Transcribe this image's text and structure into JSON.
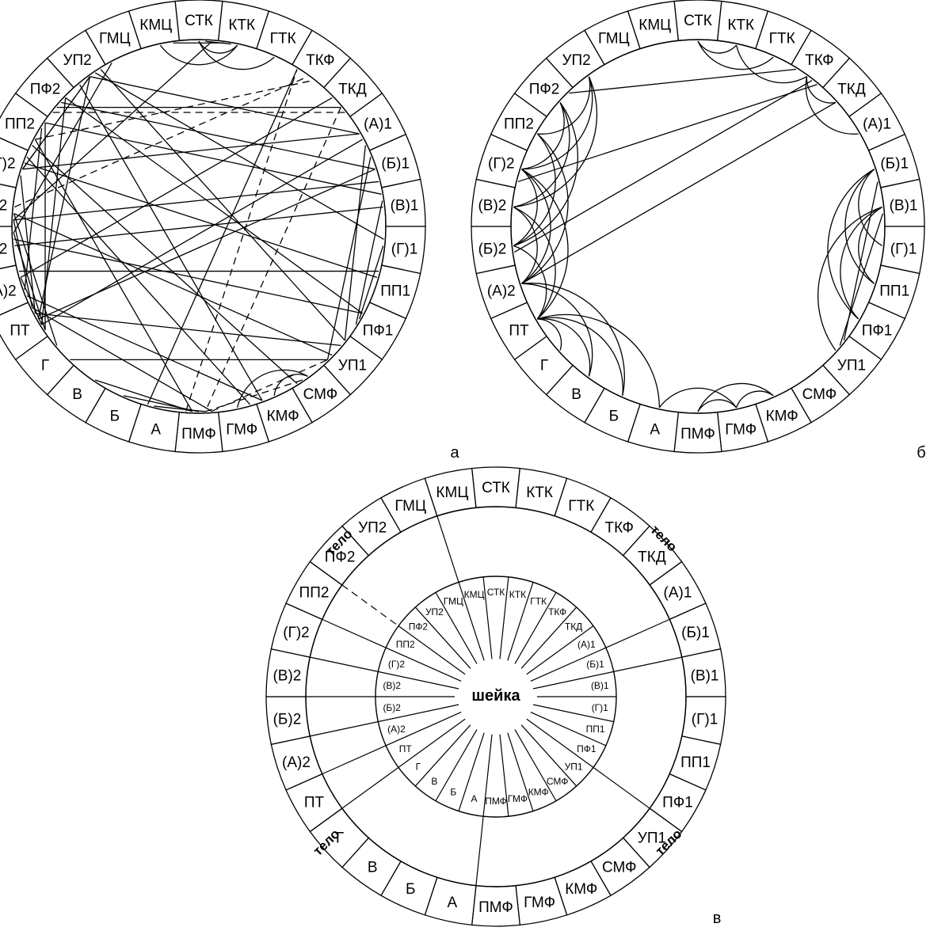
{
  "figure": {
    "segment_labels": [
      "СТК",
      "КТК",
      "ГТК",
      "ТКФ",
      "ТКД",
      "(А)1",
      "(Б)1",
      "(В)1",
      "(Г)1",
      "ПП1",
      "ПФ1",
      "УП1",
      "СМФ",
      "КМФ",
      "ГМФ",
      "ПМФ",
      "А",
      "Б",
      "В",
      "Г",
      "ПТ",
      "(А)2",
      "(Б)2",
      "(В)2",
      "(Г)2",
      "ПП2",
      "ПФ2",
      "УП2",
      "ГМЦ",
      "КМЦ"
    ],
    "panels": [
      {
        "id": "a",
        "label": "а",
        "chords": [
          [
            20,
            25
          ],
          [
            20,
            26
          ],
          [
            20,
            27
          ],
          [
            20,
            24
          ],
          [
            20,
            23
          ],
          [
            20,
            22
          ],
          [
            20,
            21
          ],
          [
            27,
            5
          ],
          [
            27,
            8
          ],
          [
            27,
            11
          ],
          [
            27,
            13
          ],
          [
            26,
            4
          ],
          [
            26,
            6
          ],
          [
            26,
            10
          ],
          [
            25,
            7
          ],
          [
            25,
            12
          ],
          [
            25,
            15
          ],
          [
            24,
            5
          ],
          [
            24,
            9
          ],
          [
            24,
            14
          ],
          [
            23,
            6
          ],
          [
            23,
            11
          ],
          [
            22,
            7
          ],
          [
            22,
            10
          ],
          [
            21,
            9
          ],
          [
            21,
            13
          ],
          [
            20,
            5
          ],
          [
            20,
            6
          ],
          [
            20,
            11
          ],
          [
            20,
            15
          ],
          [
            19,
            11
          ],
          [
            18,
            15
          ],
          [
            17,
            15
          ],
          [
            16,
            15
          ],
          [
            22,
            28
          ],
          [
            23,
            0
          ],
          [
            21,
            25
          ],
          [
            24,
            27
          ],
          [
            19,
            23
          ],
          [
            5,
            11
          ],
          [
            6,
            11
          ],
          [
            7,
            10
          ],
          [
            8,
            10
          ],
          [
            0,
            1
          ],
          [
            29,
            1
          ],
          [
            3,
            16
          ],
          [
            4,
            21
          ]
        ],
        "dashed_chords": [
          [
            26,
            4
          ],
          [
            25,
            3
          ],
          [
            23,
            3
          ],
          [
            4,
            15
          ],
          [
            15,
            3
          ],
          [
            15,
            11
          ],
          [
            15,
            12
          ],
          [
            24,
            27
          ]
        ],
        "arcs": [
          [
            0,
            1
          ],
          [
            29,
            1
          ],
          [
            0,
            2
          ],
          [
            12,
            13
          ],
          [
            12,
            14
          ]
        ]
      },
      {
        "id": "b",
        "label": "б",
        "chords": [
          [
            24,
            3
          ],
          [
            22,
            3
          ],
          [
            21,
            4
          ],
          [
            7,
            11
          ],
          [
            6,
            11
          ],
          [
            3,
            26
          ]
        ],
        "dashed_chords": [],
        "arcs": [
          [
            0,
            2
          ],
          [
            0,
            1
          ],
          [
            1,
            3
          ],
          [
            3,
            4
          ],
          [
            3,
            5
          ],
          [
            6,
            8
          ],
          [
            6,
            9
          ],
          [
            7,
            9
          ],
          [
            7,
            10
          ],
          [
            7,
            11
          ],
          [
            6,
            10
          ],
          [
            14,
            16
          ],
          [
            14,
            13
          ],
          [
            13,
            15
          ],
          [
            14,
            15
          ],
          [
            20,
            17
          ],
          [
            20,
            18
          ],
          [
            20,
            19
          ],
          [
            20,
            16
          ],
          [
            21,
            17
          ],
          [
            21,
            18
          ],
          [
            22,
            26
          ],
          [
            23,
            27
          ],
          [
            23,
            26
          ],
          [
            24,
            27
          ],
          [
            25,
            27
          ],
          [
            22,
            25
          ],
          [
            24,
            26
          ],
          [
            21,
            25
          ],
          [
            22,
            24
          ],
          [
            21,
            23
          ],
          [
            20,
            22
          ],
          [
            20,
            23
          ],
          [
            20,
            24
          ],
          [
            21,
            24
          ]
        ]
      },
      {
        "id": "v",
        "label": "в",
        "neck_label": "шейка",
        "body_labels": [
          "тело",
          "тело",
          "тело",
          "тело"
        ]
      }
    ]
  }
}
